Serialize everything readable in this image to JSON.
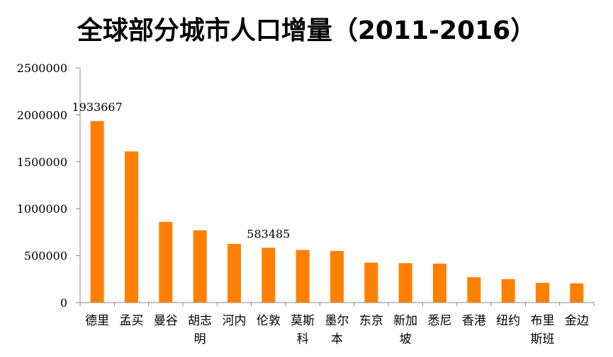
{
  "chart_data": {
    "type": "bar",
    "title": "全球部分城市人口增量（2011-2016）",
    "xlabel": "",
    "ylabel": "",
    "ylim": [
      0,
      2500000
    ],
    "yticks": [
      0,
      500000,
      1000000,
      1500000,
      2000000,
      2500000
    ],
    "ytick_labels": [
      "0",
      "500000",
      "1000000",
      "1500000",
      "2000000",
      "2500000"
    ],
    "categories": [
      [
        "德里"
      ],
      [
        "孟买"
      ],
      [
        "曼谷"
      ],
      [
        "胡志",
        "明"
      ],
      [
        "河内"
      ],
      [
        "伦敦"
      ],
      [
        "莫斯",
        "科"
      ],
      [
        "墨尔",
        "本"
      ],
      [
        "东京"
      ],
      [
        "新加",
        "坡"
      ],
      [
        "悉尼"
      ],
      [
        "香港"
      ],
      [
        "纽约"
      ],
      [
        "布里",
        "斯班"
      ],
      [
        "金边"
      ]
    ],
    "values": [
      1933667,
      1610000,
      860000,
      770000,
      625000,
      583485,
      560000,
      550000,
      425000,
      420000,
      415000,
      270000,
      250000,
      210000,
      205000
    ],
    "data_labels": [
      {
        "index": 0,
        "text": "1933667"
      },
      {
        "index": 5,
        "text": "583485"
      }
    ],
    "bar_color": "#FF8000",
    "grid": false,
    "legend": "none"
  }
}
